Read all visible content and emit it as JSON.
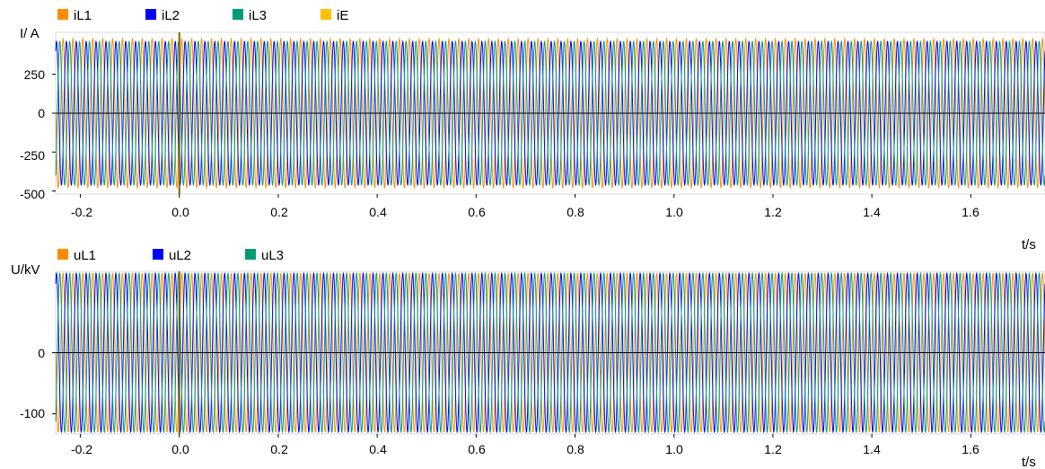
{
  "colors": {
    "L1": "#ff8c00",
    "L2": "#0000ff",
    "L3": "#009b77",
    "E": "#ffc000",
    "zero": "#000000",
    "cursor": "#7a6a00"
  },
  "chart_data": [
    {
      "type": "line",
      "ylabel": "I/ A",
      "xlabel": "t/s",
      "xlim": [
        -0.25,
        1.75
      ],
      "ylim": [
        -520,
        520
      ],
      "xticks": [
        -0.2,
        0.0,
        0.2,
        0.4,
        0.6,
        0.8,
        1.0,
        1.2,
        1.4,
        1.6
      ],
      "xtick_labels": [
        "-0.2",
        "0.0",
        "0.2",
        "0.4",
        "0.6",
        "0.8",
        "1.0",
        "1.2",
        "1.4",
        "1.6"
      ],
      "yticks": [
        -500,
        -250,
        0,
        250
      ],
      "ytick_labels": [
        "-500",
        "-250",
        "0",
        "250"
      ],
      "frequency_hz": 50,
      "cursor_x": 0.0,
      "series": [
        {
          "name": "iL1",
          "color_key": "L1",
          "amplitude": 478,
          "phase_deg": 0
        },
        {
          "name": "iL2",
          "color_key": "L2",
          "amplitude": 462,
          "phase_deg": -120
        },
        {
          "name": "iL3",
          "color_key": "L3",
          "amplitude": 462,
          "phase_deg": 120
        },
        {
          "name": "iE",
          "color_key": "E",
          "amplitude": 0,
          "phase_deg": 0
        }
      ]
    },
    {
      "type": "line",
      "ylabel": "U/kV",
      "xlabel": "t/s",
      "xlim": [
        -0.25,
        1.75
      ],
      "ylim": [
        -133,
        133
      ],
      "xticks": [
        -0.2,
        0.0,
        0.2,
        0.4,
        0.6,
        0.8,
        1.0,
        1.2,
        1.4,
        1.6
      ],
      "xtick_labels": [
        "-0.2",
        "0.0",
        "0.2",
        "0.4",
        "0.6",
        "0.8",
        "1.0",
        "1.2",
        "1.4",
        "1.6"
      ],
      "yticks": [
        -100,
        0
      ],
      "ytick_labels": [
        "-100",
        "0"
      ],
      "frequency_hz": 50,
      "cursor_x": 0.0,
      "series": [
        {
          "name": "uL1",
          "color_key": "L1",
          "amplitude": 130,
          "phase_deg": 0
        },
        {
          "name": "uL2",
          "color_key": "L2",
          "amplitude": 130,
          "phase_deg": -120
        },
        {
          "name": "uL3",
          "color_key": "L3",
          "amplitude": 130,
          "phase_deg": 120
        }
      ]
    }
  ]
}
